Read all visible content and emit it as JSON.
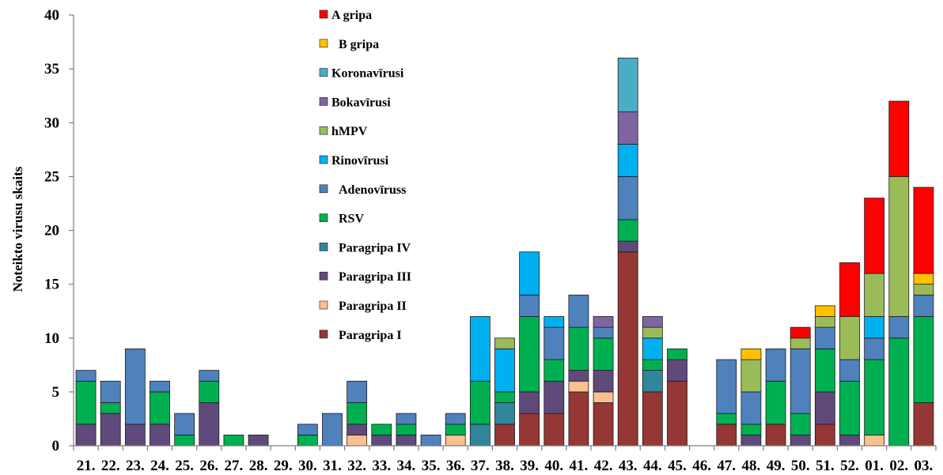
{
  "chart_data": {
    "type": "bar",
    "stacked": true,
    "title": "",
    "xlabel": "",
    "ylabel": "Noteikto virusu skaits",
    "ylim": [
      0,
      40
    ],
    "yticks": [
      0,
      5,
      10,
      15,
      20,
      25,
      30,
      35,
      40
    ],
    "grid": false,
    "legend_position": "top-center",
    "legend_order": [
      "A gripa",
      "B gripa",
      "Koronavīrusi",
      "Bokavīrusi",
      "hMPV",
      "Rinovīrusi",
      "Adenovīruss",
      "RSV",
      "Paragripa IV",
      "Paragripa III",
      "Paragripa II",
      "Paragripa I"
    ],
    "categories": [
      "21.",
      "22.",
      "23.",
      "24.",
      "25.",
      "26.",
      "27.",
      "28.",
      "29.",
      "30.",
      "31.",
      "32.",
      "33.",
      "34.",
      "35.",
      "36.",
      "37.",
      "38.",
      "39.",
      "40.",
      "41.",
      "42.",
      "43.",
      "44.",
      "45.",
      "46.",
      "47.",
      "48.",
      "49.",
      "50.",
      "51.",
      "52.",
      "01.",
      "02.",
      "03."
    ],
    "series": [
      {
        "name": "Paragripa I",
        "color": "#953735",
        "values": [
          0,
          0,
          0,
          0,
          0,
          0,
          0,
          0,
          0,
          0,
          0,
          0,
          0,
          0,
          0,
          0,
          0,
          2,
          3,
          3,
          5,
          4,
          18,
          5,
          6,
          0,
          2,
          0,
          2,
          0,
          2,
          0,
          0,
          0,
          4
        ]
      },
      {
        "name": "Paragripa II",
        "color": "#fac090",
        "values": [
          0,
          0,
          0,
          0,
          0,
          0,
          0,
          0,
          0,
          0,
          0,
          1,
          0,
          0,
          0,
          1,
          0,
          0,
          0,
          0,
          1,
          1,
          0,
          0,
          0,
          0,
          0,
          0,
          0,
          0,
          0,
          0,
          1,
          0,
          0
        ]
      },
      {
        "name": "Paragripa III",
        "color": "#604a7b",
        "values": [
          2,
          3,
          2,
          2,
          0,
          4,
          0,
          1,
          0,
          0,
          0,
          1,
          1,
          1,
          0,
          0,
          0,
          0,
          2,
          3,
          1,
          2,
          1,
          0,
          2,
          0,
          0,
          1,
          0,
          1,
          3,
          1,
          0,
          0,
          0
        ]
      },
      {
        "name": "Paragripa IV",
        "color": "#31859c",
        "values": [
          0,
          0,
          0,
          0,
          0,
          0,
          0,
          0,
          0,
          0,
          0,
          0,
          0,
          0,
          0,
          0,
          2,
          2,
          0,
          0,
          0,
          0,
          0,
          2,
          0,
          0,
          0,
          0,
          0,
          0,
          0,
          0,
          0,
          0,
          0
        ]
      },
      {
        "name": "RSV",
        "color": "#00b050",
        "values": [
          4,
          1,
          0,
          3,
          1,
          2,
          1,
          0,
          0,
          1,
          0,
          2,
          1,
          1,
          0,
          1,
          4,
          1,
          7,
          2,
          4,
          3,
          2,
          1,
          1,
          0,
          1,
          1,
          4,
          2,
          4,
          5,
          7,
          10,
          8
        ]
      },
      {
        "name": "Adenovīruss",
        "color": "#4f81bd",
        "values": [
          1,
          2,
          7,
          1,
          2,
          1,
          0,
          0,
          0,
          1,
          3,
          2,
          0,
          1,
          1,
          1,
          0,
          0,
          2,
          3,
          3,
          1,
          4,
          0,
          0,
          0,
          5,
          3,
          3,
          6,
          2,
          2,
          2,
          2,
          2
        ]
      },
      {
        "name": "Rinovīrusi",
        "color": "#00b0f0",
        "values": [
          0,
          0,
          0,
          0,
          0,
          0,
          0,
          0,
          0,
          0,
          0,
          0,
          0,
          0,
          0,
          0,
          6,
          4,
          4,
          1,
          0,
          0,
          3,
          2,
          0,
          0,
          0,
          0,
          0,
          0,
          0,
          0,
          2,
          0,
          0
        ]
      },
      {
        "name": "hMPV",
        "color": "#9bbb59",
        "values": [
          0,
          0,
          0,
          0,
          0,
          0,
          0,
          0,
          0,
          0,
          0,
          0,
          0,
          0,
          0,
          0,
          0,
          1,
          0,
          0,
          0,
          0,
          0,
          1,
          0,
          0,
          0,
          3,
          0,
          1,
          1,
          4,
          4,
          13,
          1
        ]
      },
      {
        "name": "Bokavīrusi",
        "color": "#8064a2",
        "values": [
          0,
          0,
          0,
          0,
          0,
          0,
          0,
          0,
          0,
          0,
          0,
          0,
          0,
          0,
          0,
          0,
          0,
          0,
          0,
          0,
          0,
          1,
          3,
          1,
          0,
          0,
          0,
          0,
          0,
          0,
          0,
          0,
          0,
          0,
          0
        ]
      },
      {
        "name": "Koronavīrusi",
        "color": "#4bacc6",
        "values": [
          0,
          0,
          0,
          0,
          0,
          0,
          0,
          0,
          0,
          0,
          0,
          0,
          0,
          0,
          0,
          0,
          0,
          0,
          0,
          0,
          0,
          0,
          5,
          0,
          0,
          0,
          0,
          0,
          0,
          0,
          0,
          0,
          0,
          0,
          0
        ]
      },
      {
        "name": "B gripa",
        "color": "#ffc000",
        "values": [
          0,
          0,
          0,
          0,
          0,
          0,
          0,
          0,
          0,
          0,
          0,
          0,
          0,
          0,
          0,
          0,
          0,
          0,
          0,
          0,
          0,
          0,
          0,
          0,
          0,
          0,
          0,
          1,
          0,
          0,
          1,
          0,
          0,
          0,
          1
        ]
      },
      {
        "name": "A gripa",
        "color": "#ff0000",
        "values": [
          0,
          0,
          0,
          0,
          0,
          0,
          0,
          0,
          0,
          0,
          0,
          0,
          0,
          0,
          0,
          0,
          0,
          0,
          0,
          0,
          0,
          0,
          0,
          0,
          0,
          0,
          0,
          0,
          0,
          1,
          0,
          5,
          7,
          7,
          8
        ]
      }
    ]
  }
}
